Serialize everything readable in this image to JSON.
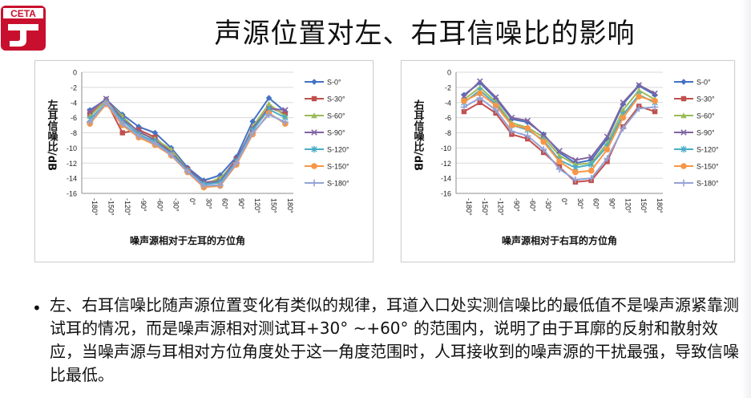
{
  "logo": {
    "text": "CETA",
    "color": "#c8102e"
  },
  "page": {
    "title": "声源位置对左、右耳信噪比的影响"
  },
  "body": {
    "bullet": "•",
    "paragraph": "左、右耳信噪比随声源位置变化有类似的规律，耳道入口处实测信噪比的最低值不是噪声源紧靠测试耳的情况，而是噪声源相对测试耳+30° ~+60° 的范围内，说明了由于耳廓的反射和散射效应，当噪声源与耳相对方位角度处于这一角度范围时，人耳接收到的噪声源的干扰最强，导致信噪比最低。"
  },
  "series_styles": [
    {
      "name": "S-0°",
      "color": "#4472c4",
      "marker": "diamond"
    },
    {
      "name": "S-30°",
      "color": "#c0504d",
      "marker": "square"
    },
    {
      "name": "S-60°",
      "color": "#9bbb59",
      "marker": "triangle"
    },
    {
      "name": "S-90°",
      "color": "#8064a2",
      "marker": "x"
    },
    {
      "name": "S-120°",
      "color": "#4bacc6",
      "marker": "star"
    },
    {
      "name": "S-150°",
      "color": "#f79646",
      "marker": "circle"
    },
    {
      "name": "S-180°",
      "color": "#95a3d6",
      "marker": "plus"
    }
  ],
  "chart_data": [
    {
      "type": "line",
      "ylabel": "左耳信噪比/dB",
      "xlabel": "噪声源相对于左耳的方位角",
      "categories": [
        "-180°",
        "-150°",
        "-120°",
        "-90°",
        "-60°",
        "-30°",
        "0°",
        "30°",
        "60°",
        "90°",
        "120°",
        "150°",
        "180°"
      ],
      "ylim": [
        -16,
        0
      ],
      "yticks": [
        "0",
        "-2",
        "-4",
        "-6",
        "-8",
        "-10",
        "-12",
        "-14",
        "-16"
      ],
      "series": [
        {
          "name": "S-0°",
          "values": [
            -5,
            -3.6,
            -5.6,
            -7.2,
            -8.0,
            -10.0,
            -12.6,
            -14.3,
            -13.6,
            -11.2,
            -6.5,
            -3.4,
            -5.2
          ]
        },
        {
          "name": "S-30°",
          "values": [
            -5.5,
            -3.8,
            -8.0,
            -7.6,
            -8.6,
            -10.6,
            -12.8,
            -14.6,
            -14.2,
            -11.5,
            -7.6,
            -4.6,
            -5.5
          ]
        },
        {
          "name": "S-60°",
          "values": [
            -5.8,
            -3.7,
            -5.8,
            -8.0,
            -8.8,
            -10.2,
            -12.9,
            -14.8,
            -14.0,
            -11.8,
            -7.2,
            -4.2,
            -5.8
          ]
        },
        {
          "name": "S-90°",
          "values": [
            -5.2,
            -3.5,
            -6.2,
            -7.8,
            -9.0,
            -10.6,
            -12.9,
            -14.6,
            -14.4,
            -11.6,
            -7.4,
            -4.8,
            -5.0
          ]
        },
        {
          "name": "S-120°",
          "values": [
            -6.2,
            -4.0,
            -6.4,
            -8.2,
            -9.2,
            -10.8,
            -13.0,
            -14.8,
            -14.6,
            -11.8,
            -7.7,
            -4.9,
            -6.0
          ]
        },
        {
          "name": "S-150°",
          "values": [
            -6.8,
            -4.2,
            -7.0,
            -8.6,
            -9.6,
            -11.0,
            -13.2,
            -15.2,
            -15.0,
            -12.2,
            -8.2,
            -5.4,
            -6.8
          ]
        },
        {
          "name": "S-180°",
          "values": [
            -6.6,
            -4.0,
            -6.8,
            -8.4,
            -9.4,
            -10.9,
            -13.1,
            -15.0,
            -14.9,
            -12.0,
            -8.0,
            -5.6,
            -6.6
          ]
        }
      ]
    },
    {
      "type": "line",
      "ylabel": "右耳信噪比/dB",
      "xlabel": "噪声源相对于右耳的方位角",
      "categories": [
        "-180°",
        "-150°",
        "-120°",
        "-90°",
        "-60°",
        "-30°",
        "0°",
        "30°",
        "60°",
        "90°",
        "120°",
        "150°",
        "180°"
      ],
      "ylim": [
        -16,
        0
      ],
      "yticks": [
        "0",
        "-2",
        "-4",
        "-6",
        "-8",
        "-10",
        "-12",
        "-14",
        "-16"
      ],
      "series": [
        {
          "name": "S-0°",
          "values": [
            -3.0,
            -1.4,
            -3.5,
            -6.2,
            -6.6,
            -8.2,
            -10.6,
            -12.0,
            -11.6,
            -8.8,
            -4.2,
            -1.8,
            -3.0
          ]
        },
        {
          "name": "S-30°",
          "values": [
            -5.2,
            -4.0,
            -5.4,
            -8.2,
            -8.8,
            -10.6,
            -12.5,
            -14.5,
            -14.3,
            -11.8,
            -7.2,
            -4.5,
            -5.2
          ]
        },
        {
          "name": "S-60°",
          "values": [
            -3.6,
            -2.0,
            -3.9,
            -6.7,
            -7.3,
            -8.6,
            -11.0,
            -12.2,
            -12.0,
            -9.4,
            -5.0,
            -2.4,
            -3.6
          ]
        },
        {
          "name": "S-90°",
          "values": [
            -3.2,
            -1.2,
            -3.3,
            -6.0,
            -6.4,
            -8.3,
            -10.4,
            -11.6,
            -11.2,
            -8.5,
            -4.0,
            -1.7,
            -2.8
          ]
        },
        {
          "name": "S-120°",
          "values": [
            -4.0,
            -2.4,
            -4.2,
            -7.0,
            -7.6,
            -9.0,
            -11.6,
            -12.6,
            -12.2,
            -9.8,
            -5.6,
            -3.0,
            -4.0
          ]
        },
        {
          "name": "S-150°",
          "values": [
            -3.8,
            -2.8,
            -4.4,
            -7.0,
            -7.4,
            -9.2,
            -11.8,
            -13.2,
            -13.0,
            -10.2,
            -6.0,
            -3.2,
            -3.8
          ]
        },
        {
          "name": "S-180°",
          "values": [
            -4.6,
            -3.4,
            -5.0,
            -7.8,
            -8.4,
            -10.2,
            -12.8,
            -14.2,
            -14.0,
            -11.4,
            -7.4,
            -4.8,
            -4.6
          ]
        }
      ]
    }
  ]
}
